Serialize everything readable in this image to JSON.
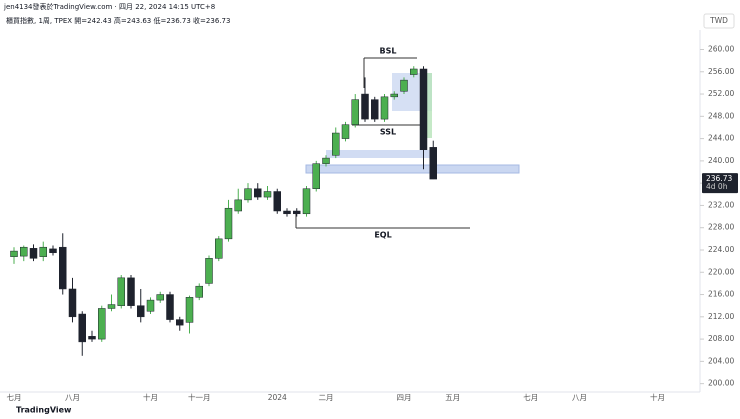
{
  "header": {
    "byline": "jen4134發表於TradingView.com · 四月 22, 2024 14:15 UTC+8",
    "legend_text": "櫃買指數, 1周, TPEX  開=242.43  高=243.63  低=236.73  收=236.73",
    "brand": "TradingView"
  },
  "chart_data": {
    "type": "candlestick",
    "currency": "TWD",
    "countdown": "4d 0h",
    "up_color": "#4caf50",
    "down_color": "#1e222d",
    "categories": [
      "七月",
      null,
      null,
      null,
      null,
      null,
      "八月",
      null,
      null,
      null,
      null,
      null,
      null,
      null,
      "十月",
      null,
      null,
      null,
      null,
      "十一月",
      null,
      null,
      null,
      null,
      null,
      null,
      null,
      "2024",
      null,
      null,
      null,
      null,
      "二月",
      null,
      null,
      null,
      null,
      null,
      null,
      null,
      "四月",
      null,
      null,
      null,
      null,
      "五月",
      null,
      null,
      null,
      null,
      null,
      null,
      null,
      "七月",
      null,
      null,
      null,
      null,
      "八月",
      null,
      null,
      null,
      null,
      null,
      null,
      null,
      "十月",
      null,
      null,
      null,
      null
    ],
    "open": [
      222.8,
      222.9,
      224.3,
      222.8,
      224.2,
      224.5,
      217,
      212.5,
      208.5,
      208,
      213.5,
      214,
      219,
      214,
      213,
      215,
      216,
      211.5,
      211,
      215.5,
      218,
      222.5,
      226,
      231,
      233,
      235,
      233.5,
      234.5,
      231,
      231,
      230.5,
      235,
      239.5,
      241,
      244,
      246.5,
      252,
      251,
      247.5,
      251.5,
      252.5,
      255.5,
      256.5,
      242.43,
      null,
      null,
      null,
      null,
      null,
      null,
      null,
      null,
      null,
      null,
      null,
      null,
      null,
      null,
      null,
      null,
      null,
      null,
      null,
      null,
      null,
      null,
      null,
      null,
      null,
      null,
      null
    ],
    "high": [
      224.5,
      224.8,
      225,
      225.5,
      224.8,
      227,
      219,
      213,
      209.5,
      214,
      216,
      219.5,
      219.5,
      217,
      215.5,
      216.5,
      216.5,
      212,
      215.8,
      218,
      223,
      226.5,
      233,
      235,
      236,
      236,
      235.5,
      235,
      231.5,
      231.5,
      235.5,
      240,
      241,
      246,
      247,
      252,
      255,
      251.5,
      252,
      252.5,
      255,
      257,
      257,
      243.63,
      null,
      null,
      null,
      null,
      null,
      null,
      null,
      null,
      null,
      null,
      null,
      null,
      null,
      null,
      null,
      null,
      null,
      null,
      null,
      null,
      null,
      null,
      null,
      null,
      null,
      null,
      null
    ],
    "low": [
      221.5,
      222,
      222,
      222,
      223,
      216,
      211,
      205,
      207.5,
      207.5,
      213,
      213.5,
      213.5,
      211,
      212.5,
      214.5,
      211,
      209.5,
      209,
      215,
      217.5,
      222,
      225.5,
      230.5,
      232.5,
      233,
      233,
      230.5,
      230,
      230,
      230,
      234.5,
      239,
      240.5,
      243.5,
      246,
      247,
      247,
      247,
      251,
      252,
      255,
      238.5,
      236.73,
      null,
      null,
      null,
      null,
      null,
      null,
      null,
      null,
      null,
      null,
      null,
      null,
      null,
      null,
      null,
      null,
      null,
      null,
      null,
      null,
      null,
      null,
      null,
      null,
      null,
      null,
      null
    ],
    "close": [
      223.8,
      224.5,
      222.5,
      224.5,
      223.5,
      217,
      212,
      207.5,
      208,
      213.5,
      214.2,
      219,
      214,
      212,
      215,
      216,
      211.5,
      210.5,
      215.5,
      217.5,
      222.5,
      226,
      231.5,
      233,
      235,
      233.5,
      234.5,
      231,
      230.5,
      230.5,
      235,
      239.5,
      240.5,
      245,
      246.5,
      251,
      247.5,
      247.5,
      251.5,
      252,
      254.5,
      256.5,
      242,
      236.73,
      null,
      null,
      null,
      null,
      null,
      null,
      null,
      null,
      null,
      null,
      null,
      null,
      null,
      null,
      null,
      null,
      null,
      null,
      null,
      null,
      null,
      null,
      null,
      null,
      null,
      null,
      null
    ],
    "ylim": [
      198.5,
      263.5
    ],
    "yticks": [
      {
        "value": 200,
        "label": "200.00"
      },
      {
        "value": 204,
        "label": "204.00"
      },
      {
        "value": 208,
        "label": "208.00"
      },
      {
        "value": 212,
        "label": "212.00"
      },
      {
        "value": 216,
        "label": "216.00"
      },
      {
        "value": 220,
        "label": "220.00"
      },
      {
        "value": 224,
        "label": "224.00"
      },
      {
        "value": 228,
        "label": "228.00"
      },
      {
        "value": 232,
        "label": "232.00"
      },
      {
        "value": 236,
        "label": "236.00"
      },
      {
        "value": 240,
        "label": "240.00"
      },
      {
        "value": 244,
        "label": "244.00"
      },
      {
        "value": 248,
        "label": "248.00"
      },
      {
        "value": 252,
        "label": "252.00"
      },
      {
        "value": 256,
        "label": "256.00"
      },
      {
        "value": 260,
        "label": "260.00"
      }
    ],
    "annotations": {
      "bsl": "BSL",
      "ssl": "SSL",
      "eql": "EQL"
    }
  }
}
